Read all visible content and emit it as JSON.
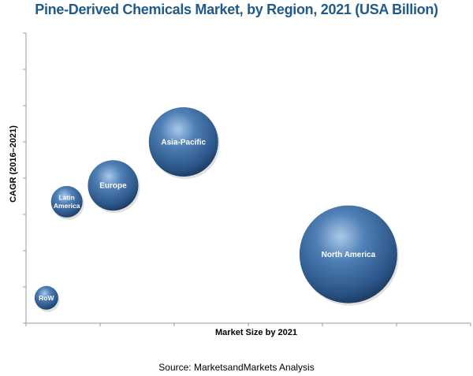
{
  "chart_data": {
    "type": "bubble",
    "title": "Pine-Derived Chemicals Market, by Region, 2021 (USA Billion)",
    "xlabel": "Market Size by 2021",
    "ylabel": "CAGR (2016–2021)",
    "xlim": [
      0,
      12
    ],
    "ylim": [
      0,
      8
    ],
    "grid": false,
    "legend": "none",
    "bubble_color": "#2e5f92",
    "points": [
      {
        "label": "RoW",
        "x": 0.55,
        "y": 0.7,
        "size": 0.75
      },
      {
        "label": "Latin America",
        "x": 1.1,
        "y": 3.35,
        "size": 1.0
      },
      {
        "label": "Europe",
        "x": 2.35,
        "y": 3.8,
        "size": 1.6
      },
      {
        "label": "Asia-Pacific",
        "x": 4.25,
        "y": 5.0,
        "size": 2.2
      },
      {
        "label": "North America",
        "x": 8.7,
        "y": 1.9,
        "size": 3.1
      }
    ]
  },
  "source": "Source: MarketsandMarkets Analysis"
}
